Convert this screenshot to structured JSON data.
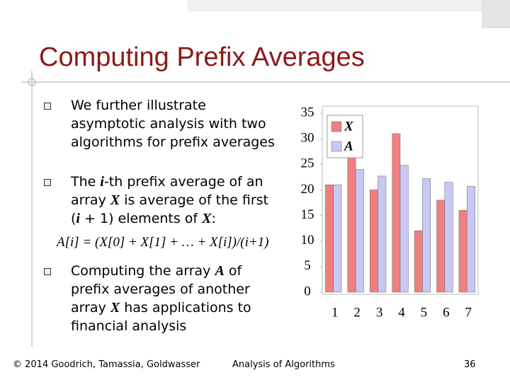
{
  "slide": {
    "title": "Computing Prefix Averages",
    "bullets": [
      {
        "parts": [
          "We further illustrate asymptotic analysis with two algorithms for prefix averages"
        ]
      },
      {
        "parts": [
          "The ",
          "i",
          "-th prefix average of an array ",
          "X",
          " is average of the first (",
          "i",
          " + 1) elements of ",
          "X",
          ":"
        ]
      },
      {
        "parts": [
          "Computing the array ",
          "A",
          " of prefix averages of another array ",
          "X",
          " has applications to financial analysis"
        ]
      }
    ],
    "formula": "A[i] = (X[0] + X[1] + … + X[i])/(i+1)",
    "footer": {
      "left": "© 2014 Goodrich, Tamassia, Goldwasser",
      "center": "Analysis of Algorithms",
      "page": "36"
    }
  },
  "chart_data": {
    "type": "bar",
    "categories": [
      "1",
      "2",
      "3",
      "4",
      "5",
      "6",
      "7"
    ],
    "series": [
      {
        "name": "X",
        "color": "#f08080",
        "values": [
          21,
          27,
          20,
          31,
          12,
          18,
          16
        ]
      },
      {
        "name": "A",
        "color": "#c8c8f4",
        "values": [
          21,
          24,
          22.7,
          24.8,
          22.2,
          21.5,
          20.7
        ]
      }
    ],
    "ylim": [
      0,
      35
    ],
    "yticks": [
      0,
      5,
      10,
      15,
      20,
      25,
      30,
      35
    ],
    "legend": "upper left"
  }
}
